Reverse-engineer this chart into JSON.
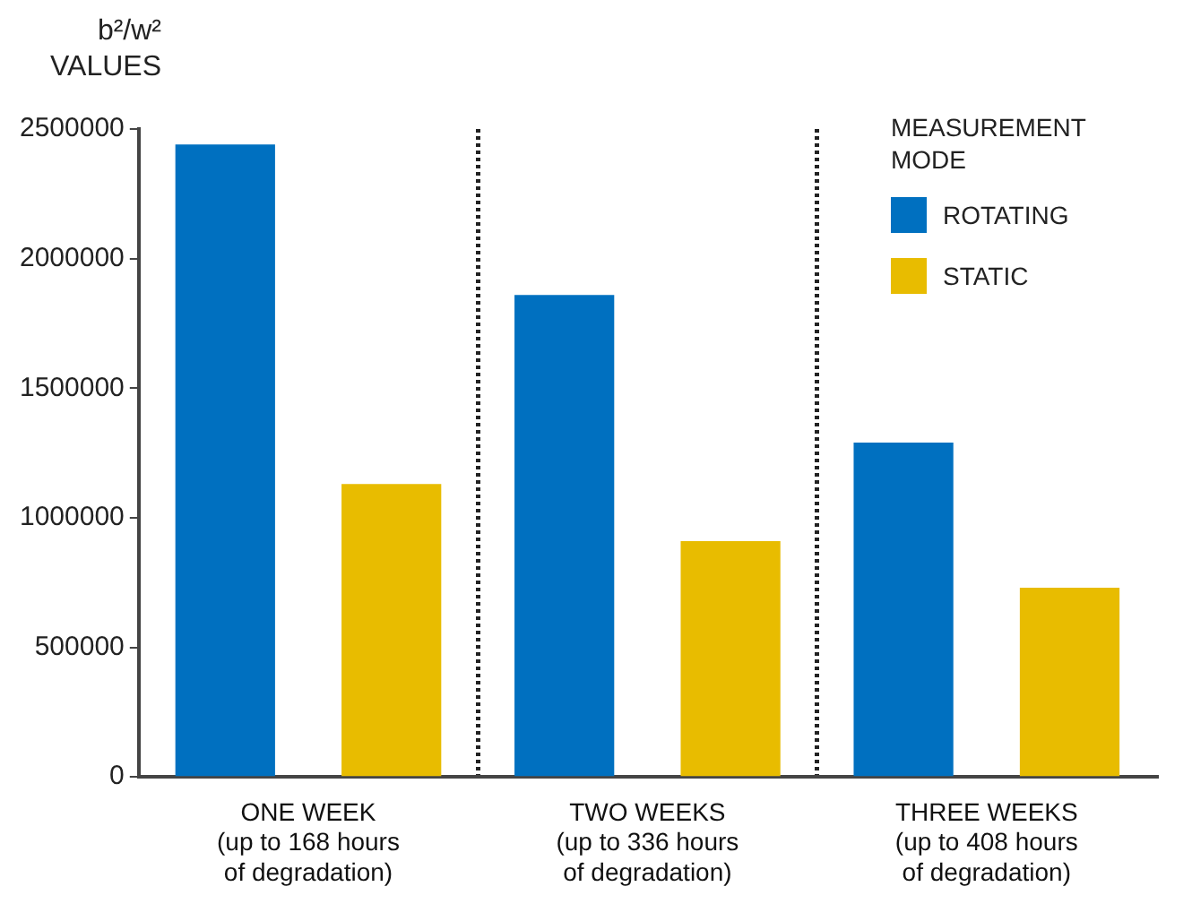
{
  "chart_data": {
    "type": "bar",
    "ylabel": "b²/w² VALUES",
    "legend_title": "MEASUREMENT MODE",
    "categories": [
      "ONE WEEK\n(up to 168 hours\nof degradation)",
      "TWO WEEKS\n(up to 336 hours\nof degradation)",
      "THREE WEEKS\n(up to 408 hours\nof degradation)"
    ],
    "series": [
      {
        "name": "ROTATING",
        "color": "#0070c0",
        "values": [
          2440000,
          1860000,
          1290000
        ]
      },
      {
        "name": "STATIC",
        "color": "#e8bc00",
        "values": [
          1130000,
          910000,
          730000
        ]
      }
    ],
    "ylim": [
      0,
      2500000
    ],
    "yticks": [
      0,
      500000,
      1000000,
      1500000,
      2000000,
      2500000
    ],
    "grid": "x",
    "legend": "top right"
  }
}
